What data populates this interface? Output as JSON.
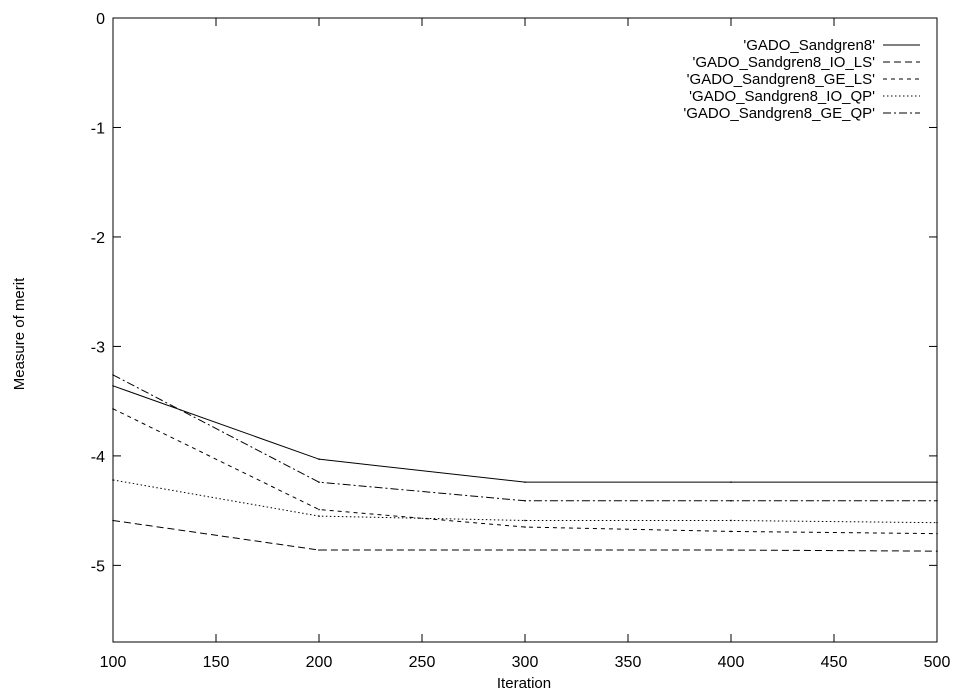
{
  "chart_data": {
    "type": "line",
    "title": "",
    "xlabel": "Iteration",
    "ylabel": "Measure of merit",
    "xlim": [
      100,
      500
    ],
    "ylim": [
      -5.7,
      0
    ],
    "xticks": [
      100,
      150,
      200,
      250,
      300,
      350,
      400,
      450,
      500
    ],
    "yticks": [
      0,
      -1,
      -2,
      -3,
      -4,
      -5
    ],
    "grid": false,
    "legend_position": "top-right",
    "x": [
      100,
      200,
      300,
      400,
      500
    ],
    "series": [
      {
        "name": "'GADO_Sandgren8'",
        "dash": "solid",
        "values": [
          -3.36,
          -4.03,
          -4.24,
          -4.24,
          -4.24
        ]
      },
      {
        "name": "'GADO_Sandgren8_IO_LS'",
        "dash": "dashed",
        "values": [
          -4.59,
          -4.86,
          -4.86,
          -4.86,
          -4.87
        ]
      },
      {
        "name": "'GADO_Sandgren8_GE_LS'",
        "dash": "short-dashed",
        "values": [
          -3.57,
          -4.49,
          -4.65,
          -4.69,
          -4.71
        ]
      },
      {
        "name": "'GADO_Sandgren8_IO_QP'",
        "dash": "dotted",
        "values": [
          -4.22,
          -4.55,
          -4.59,
          -4.59,
          -4.61
        ]
      },
      {
        "name": "'GADO_Sandgren8_GE_QP'",
        "dash": "dash-dot",
        "values": [
          -3.26,
          -4.24,
          -4.41,
          -4.41,
          -4.41
        ]
      }
    ]
  }
}
